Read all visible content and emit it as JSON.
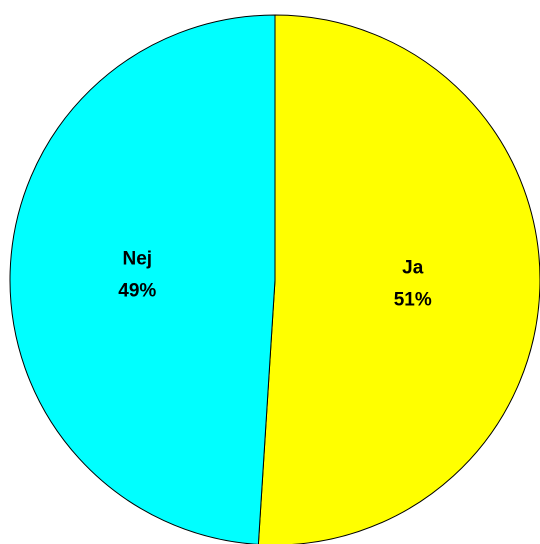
{
  "chart_data": {
    "type": "pie",
    "categories": [
      "Ja",
      "Nej"
    ],
    "values": [
      51,
      49
    ],
    "value_labels": [
      "51%",
      "49%"
    ],
    "colors": [
      "#ffff00",
      "#00ffff"
    ]
  }
}
